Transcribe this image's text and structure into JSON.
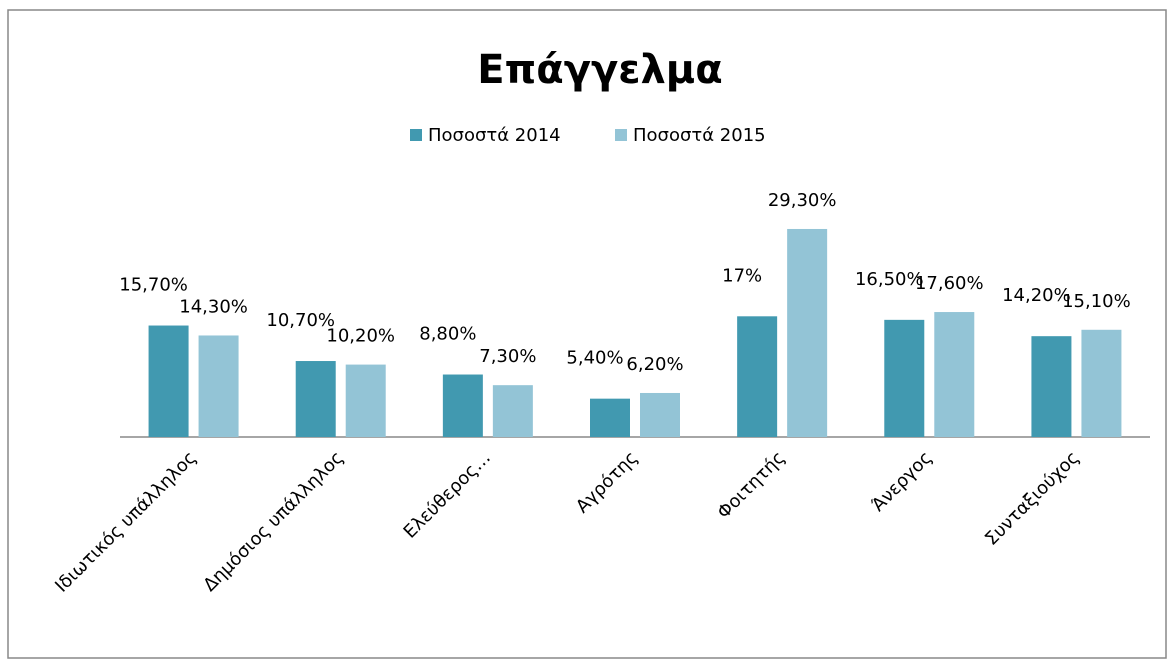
{
  "chart_data": {
    "type": "bar",
    "title": "Επάγγελμα",
    "categories": [
      "Ιδιωτικός υπάλληλος",
      "Δημόσιος υπάλληλος",
      "Ελεύθερος…",
      "Αγρότης",
      "Φοιτητής",
      "Άνεργος",
      "Συνταξιούχος"
    ],
    "series": [
      {
        "name": "Ποσοστά 2014",
        "color": "#4199b0",
        "values": [
          15.7,
          10.7,
          8.8,
          5.4,
          17,
          16.5,
          14.2
        ],
        "value_labels": [
          "15,70%",
          "10,70%",
          "8,80%",
          "5,40%",
          "17%",
          "16,50%",
          "14,20%"
        ]
      },
      {
        "name": "Ποσοστά 2015",
        "color": "#93c4d6",
        "values": [
          14.3,
          10.2,
          7.3,
          6.2,
          29.3,
          17.6,
          15.1
        ],
        "value_labels": [
          "14,30%",
          "10,20%",
          "7,30%",
          "6,20%",
          "29,30%",
          "17,60%",
          "15,10%"
        ]
      }
    ],
    "ylim": [
      0,
      35
    ],
    "legend": "top"
  }
}
